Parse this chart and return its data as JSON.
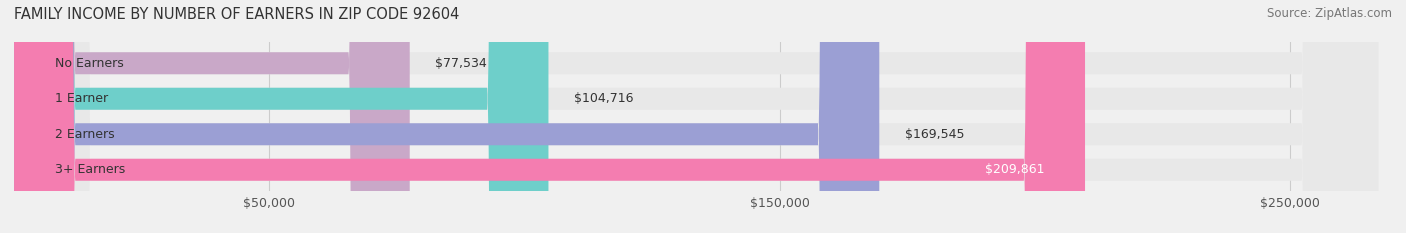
{
  "title": "FAMILY INCOME BY NUMBER OF EARNERS IN ZIP CODE 92604",
  "source": "Source: ZipAtlas.com",
  "categories": [
    "No Earners",
    "1 Earner",
    "2 Earners",
    "3+ Earners"
  ],
  "values": [
    77534,
    104716,
    169545,
    209861
  ],
  "bar_colors": [
    "#c9a8c8",
    "#6ecfca",
    "#9b9fd4",
    "#f47db0"
  ],
  "label_colors": [
    "#555555",
    "#555555",
    "#555555",
    "#ffffff"
  ],
  "value_labels": [
    "$77,534",
    "$104,716",
    "$169,545",
    "$209,861"
  ],
  "x_ticks": [
    50000,
    150000,
    250000
  ],
  "x_tick_labels": [
    "$50,000",
    "$150,000",
    "$250,000"
  ],
  "xlim": [
    0,
    270000
  ],
  "background_color": "#f0f0f0",
  "bar_background_color": "#e8e8e8",
  "title_fontsize": 10.5,
  "source_fontsize": 8.5,
  "label_fontsize": 9,
  "value_fontsize": 9,
  "tick_fontsize": 9
}
